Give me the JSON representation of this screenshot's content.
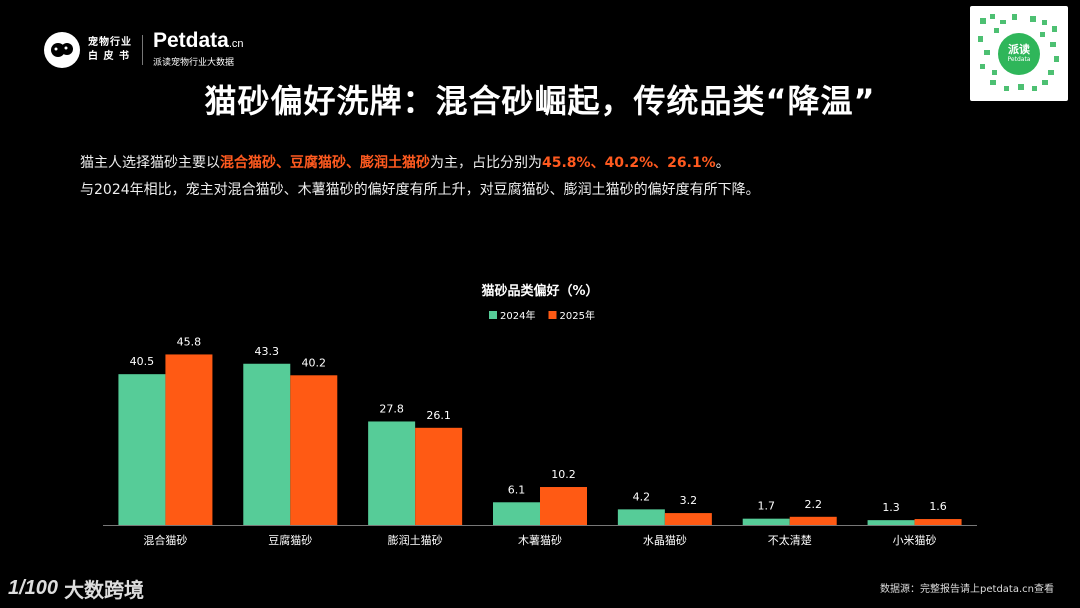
{
  "header": {
    "logo_cn_line1": "宠物行业",
    "logo_cn_line2": "白 皮 书",
    "brand": "Petdata",
    "brand_suffix": ".cn",
    "brand_sub": "派读宠物行业大数据"
  },
  "qr": {
    "badge_line1": "派读",
    "badge_line2": "Petdata"
  },
  "title": "猫砂偏好洗牌：混合砂崛起，传统品类“降温”",
  "description": {
    "line1_prefix": "猫主人选择猫砂主要以",
    "line1_highlight_types": "混合猫砂、豆腐猫砂、膨润土猫砂",
    "line1_middle": "为主，占比分别为",
    "line1_highlight_values": "45.8%、40.2%、26.1%",
    "line1_suffix": "。",
    "line2": "与2024年相比，宠主对混合猫砂、木薯猫砂的偏好度有所上升，对豆腐猫砂、膨润土猫砂的偏好度有所下降。"
  },
  "chart_data": {
    "type": "bar",
    "title": "猫砂品类偏好（%）",
    "categories": [
      "混合猫砂",
      "豆腐猫砂",
      "膨润土猫砂",
      "木薯猫砂",
      "水晶猫砂",
      "不太清楚",
      "小米猫砂"
    ],
    "series": [
      {
        "name": "2024年",
        "color": "#56cc98",
        "values": [
          40.5,
          43.3,
          27.8,
          6.1,
          4.2,
          1.7,
          1.3
        ]
      },
      {
        "name": "2025年",
        "color": "#ff5a14",
        "values": [
          45.8,
          40.2,
          26.1,
          10.2,
          3.2,
          2.2,
          1.6
        ]
      }
    ],
    "ylim": [
      0,
      50
    ],
    "grid": false,
    "legend": "top-center"
  },
  "footer": {
    "logo_mark": "1/100",
    "logo_text": "大数跨境",
    "source": "数据源：完整报告请上petdata.cn查看"
  }
}
